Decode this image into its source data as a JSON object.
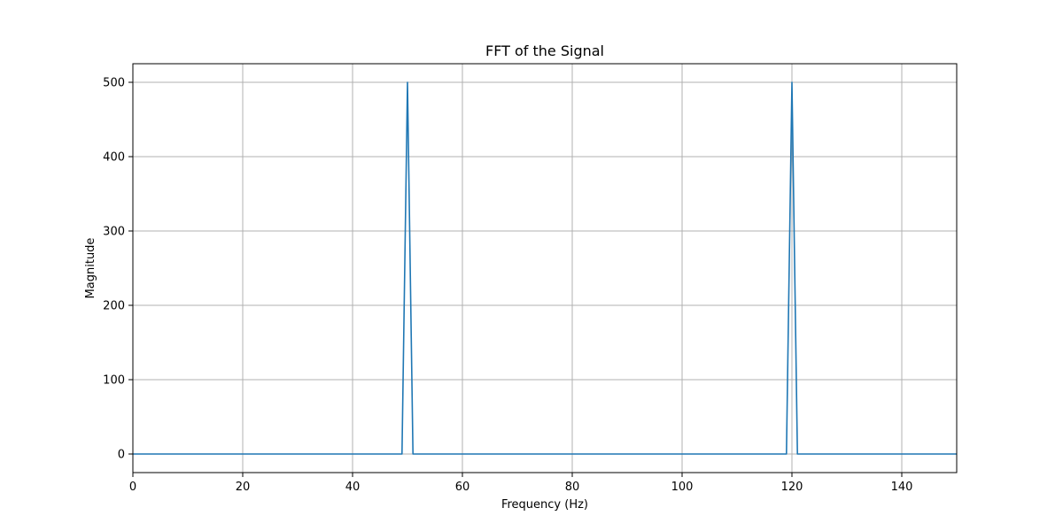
{
  "chart_data": {
    "type": "line",
    "title": "FFT of the Signal",
    "xlabel": "Frequency (Hz)",
    "ylabel": "Magnitude",
    "xlim": [
      0,
      150
    ],
    "ylim": [
      -25,
      525
    ],
    "xticks": [
      0,
      20,
      40,
      60,
      80,
      100,
      120,
      140
    ],
    "yticks": [
      0,
      100,
      200,
      300,
      400,
      500
    ],
    "grid": true,
    "series": [
      {
        "color": "#1f77b4",
        "x": [
          0,
          49,
          50,
          51,
          119,
          120,
          121,
          150
        ],
        "y": [
          0,
          0,
          500,
          0,
          0,
          500,
          0,
          0
        ]
      }
    ]
  },
  "colors": {
    "grid": "#b0b0b0",
    "axes": "#000000"
  }
}
